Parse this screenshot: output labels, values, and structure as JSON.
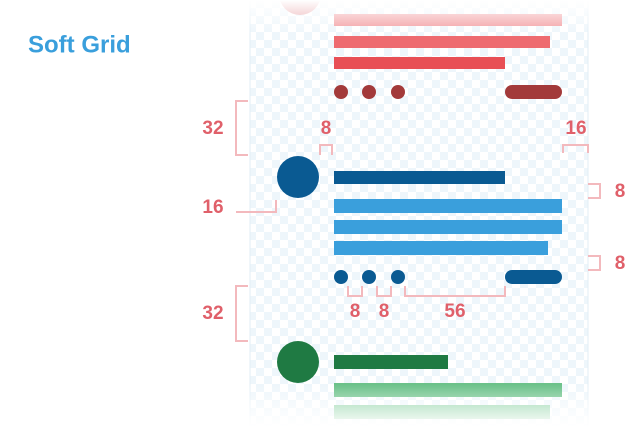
{
  "title": "Soft Grid",
  "spacing_labels": {
    "top_gap": "32",
    "avatar_gap": "8",
    "right_margin": "16",
    "avatar_offset": "16",
    "right_gap_1": "8",
    "right_gap_2": "8",
    "dot_gap_1": "8",
    "dot_gap_2": "8",
    "dot_to_pill": "56",
    "bottom_gap": "32"
  }
}
